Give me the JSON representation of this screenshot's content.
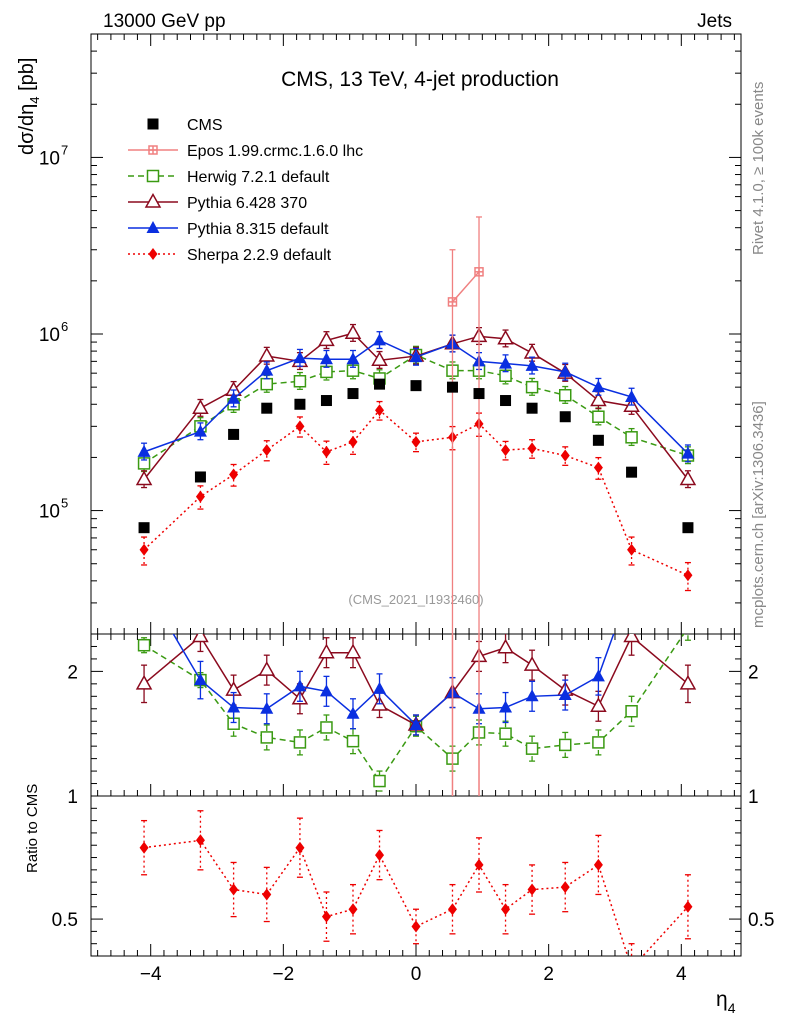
{
  "header": {
    "left": "13000 GeV pp",
    "right": "Jets"
  },
  "side_labels": {
    "rivet": "Rivet 4.1.0, ≥ 100k events",
    "mcplots": "mcplots.cern.ch [arXiv:1306.3436]"
  },
  "chart_data": {
    "type": "scatter",
    "title": "CMS, 13 TeV, 4-jet production",
    "watermark": "(CMS_2021_I1932460)",
    "xlabel": "η",
    "xlabel_sub": "4",
    "ylabel": "dσ/dη",
    "ylabel_sub": "4",
    "ylabel_unit": " [pb]",
    "ratio_ylabel": "Ratio to CMS",
    "x_range": [
      -4.9,
      4.9
    ],
    "y_range": [
      20000,
      50000000
    ],
    "y_scale": "log",
    "ratio_upper_range": [
      1,
      2.3
    ],
    "ratio_lower_range": [
      0.35,
      1
    ],
    "x_ticks": [
      -4,
      -2,
      0,
      2,
      4
    ],
    "x_tick_labels": [
      "−4",
      "−2",
      "0",
      "2",
      "4"
    ],
    "y_tick_labels": [
      {
        "value": 100000,
        "base": "10",
        "exp": "5"
      },
      {
        "value": 1000000,
        "base": "10",
        "exp": "6"
      },
      {
        "value": 10000000,
        "base": "10",
        "exp": "7"
      }
    ],
    "ratio_tick_labels": [
      {
        "value": 2,
        "label": "2"
      },
      {
        "value": 1,
        "label": "1"
      },
      {
        "value": 0.5,
        "label": "0.5"
      }
    ],
    "legend_position": "top-left",
    "x": [
      -4.1,
      -3.25,
      -2.75,
      -2.25,
      -1.75,
      -1.35,
      -0.95,
      -0.55,
      0.0,
      0.55,
      0.95,
      1.35,
      1.75,
      2.25,
      2.75,
      3.25,
      4.1
    ],
    "series": [
      {
        "name": "CMS",
        "label": "CMS",
        "color": "#000000",
        "marker": "square-filled",
        "line": "none",
        "values": [
          80000,
          155000,
          270000,
          380000,
          400000,
          420000,
          460000,
          520000,
          510000,
          500000,
          460000,
          420000,
          380000,
          340000,
          250000,
          165000,
          80000
        ]
      },
      {
        "name": "Epos",
        "label": "Epos 1.99.crmc.1.6.0 lhc",
        "color": "#f08080",
        "marker": "cross-square",
        "line": "solid",
        "x": [
          0.55,
          0.95
        ],
        "values": [
          1520000,
          2250000
        ],
        "err_lo": [
          1500000,
          2230000
        ],
        "err_hi": [
          1480000,
          2350000
        ],
        "ratio": [
          3.04,
          4.9
        ]
      },
      {
        "name": "Herwig",
        "label": "Herwig 7.2.1 default",
        "color": "#3a9a12",
        "marker": "square-open",
        "line": "dashed",
        "values": [
          185000,
          300000,
          400000,
          520000,
          540000,
          610000,
          620000,
          560000,
          760000,
          620000,
          620000,
          580000,
          500000,
          450000,
          340000,
          260000,
          205000
        ],
        "ratio": [
          2.21,
          1.93,
          1.58,
          1.47,
          1.43,
          1.55,
          1.44,
          1.12,
          1.56,
          1.3,
          1.51,
          1.5,
          1.38,
          1.41,
          1.43,
          1.68,
          2.35
        ],
        "ratio_err": [
          0.06,
          0.06,
          0.1,
          0.1,
          0.1,
          0.1,
          0.1,
          0.08,
          0.08,
          0.1,
          0.1,
          0.1,
          0.1,
          0.1,
          0.1,
          0.12,
          0.1
        ]
      },
      {
        "name": "Pythia6",
        "label": "Pythia 6.428 370",
        "color": "#8b0a1e",
        "marker": "triangle-open",
        "line": "solid",
        "values": [
          150000,
          380000,
          480000,
          750000,
          700000,
          920000,
          1010000,
          710000,
          750000,
          880000,
          970000,
          940000,
          780000,
          600000,
          420000,
          390000,
          150000
        ],
        "ratio": [
          1.9,
          2.28,
          1.85,
          2.01,
          1.78,
          2.15,
          2.15,
          1.73,
          1.57,
          1.83,
          2.12,
          2.19,
          2.05,
          1.85,
          1.72,
          2.28,
          1.9
        ],
        "ratio_err": [
          0.15,
          0.12,
          0.12,
          0.12,
          0.12,
          0.12,
          0.12,
          0.1,
          0.08,
          0.12,
          0.12,
          0.12,
          0.12,
          0.12,
          0.12,
          0.15,
          0.15
        ]
      },
      {
        "name": "Pythia8",
        "label": "Pythia 8.315 default",
        "color": "#0a2fe0",
        "marker": "triangle-filled",
        "line": "solid",
        "values": [
          215000,
          280000,
          430000,
          620000,
          730000,
          720000,
          720000,
          920000,
          740000,
          880000,
          700000,
          680000,
          660000,
          610000,
          500000,
          440000,
          210000
        ],
        "ratio": [
          2.7,
          1.93,
          1.71,
          1.7,
          1.88,
          1.84,
          1.66,
          1.86,
          1.57,
          1.83,
          1.7,
          1.71,
          1.8,
          1.81,
          1.96,
          2.7,
          2.7
        ],
        "ratio_err": [
          0.15,
          0.15,
          0.12,
          0.12,
          0.12,
          0.12,
          0.12,
          0.12,
          0.08,
          0.12,
          0.12,
          0.12,
          0.12,
          0.12,
          0.15,
          0.15,
          0.15
        ]
      },
      {
        "name": "Sherpa",
        "label": "Sherpa 2.2.9 default",
        "color": "#ee0000",
        "marker": "diamond-filled",
        "line": "dotted",
        "values": [
          60000,
          120000,
          160000,
          220000,
          300000,
          215000,
          245000,
          370000,
          245000,
          260000,
          310000,
          220000,
          225000,
          205000,
          175000,
          60000,
          43000
        ],
        "err_frac": [
          0.18,
          0.15,
          0.14,
          0.13,
          0.13,
          0.15,
          0.15,
          0.12,
          0.12,
          0.15,
          0.15,
          0.12,
          0.12,
          0.12,
          0.14,
          0.18,
          0.18
        ],
        "ratio": [
          0.79,
          0.82,
          0.62,
          0.6,
          0.79,
          0.51,
          0.54,
          0.76,
          0.47,
          0.54,
          0.72,
          0.54,
          0.62,
          0.63,
          0.72,
          0.3,
          0.55
        ],
        "ratio_err": [
          0.11,
          0.12,
          0.11,
          0.11,
          0.12,
          0.1,
          0.1,
          0.1,
          0.07,
          0.1,
          0.11,
          0.1,
          0.1,
          0.1,
          0.12,
          0.1,
          0.13
        ]
      }
    ]
  }
}
